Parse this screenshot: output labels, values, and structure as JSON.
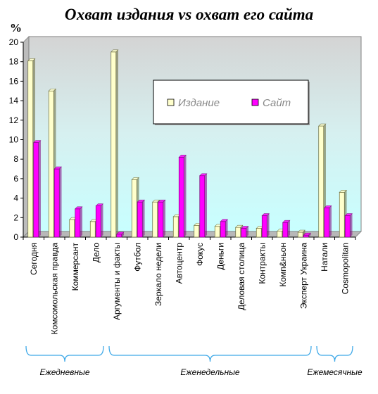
{
  "chart_data": {
    "type": "bar",
    "title": "Охват издания vs охват его сайта",
    "ylabel": "%",
    "xlabel": "",
    "ylim": [
      0,
      20
    ],
    "yticks": [
      0,
      2,
      4,
      6,
      8,
      10,
      12,
      14,
      16,
      18,
      20
    ],
    "grid": false,
    "legend_position": "upper-center",
    "categories": [
      "Сегодня",
      "Комсомольская правда",
      "Коммерсант",
      "Дело",
      "Аргументы и факты",
      "Футбол",
      "Зеркало недели",
      "Автоцентр",
      "Фокус",
      "Деньги",
      "Деловая столица",
      "Контракты",
      "Комп&ньон",
      "Эксперт Украина",
      "Натали",
      "Cosmopolitan"
    ],
    "series": [
      {
        "name": "Издание",
        "color": "#ffffcc",
        "values": [
          18.1,
          15.0,
          1.8,
          1.6,
          19.0,
          5.9,
          3.6,
          2.1,
          1.2,
          1.1,
          1.0,
          0.9,
          0.6,
          0.5,
          11.4,
          4.6
        ]
      },
      {
        "name": "Сайт",
        "color": "#ff00ff",
        "values": [
          9.7,
          7.0,
          2.9,
          3.2,
          0.3,
          3.6,
          3.6,
          8.2,
          6.3,
          1.6,
          0.9,
          2.2,
          1.5,
          0.2,
          3.0,
          2.2
        ]
      }
    ],
    "groups": [
      {
        "label": "Ежедневные",
        "from": 0,
        "to": 3
      },
      {
        "label": "Еженедельные",
        "from": 4,
        "to": 13
      },
      {
        "label": "Ежемесячные",
        "from": 14,
        "to": 15
      }
    ]
  }
}
